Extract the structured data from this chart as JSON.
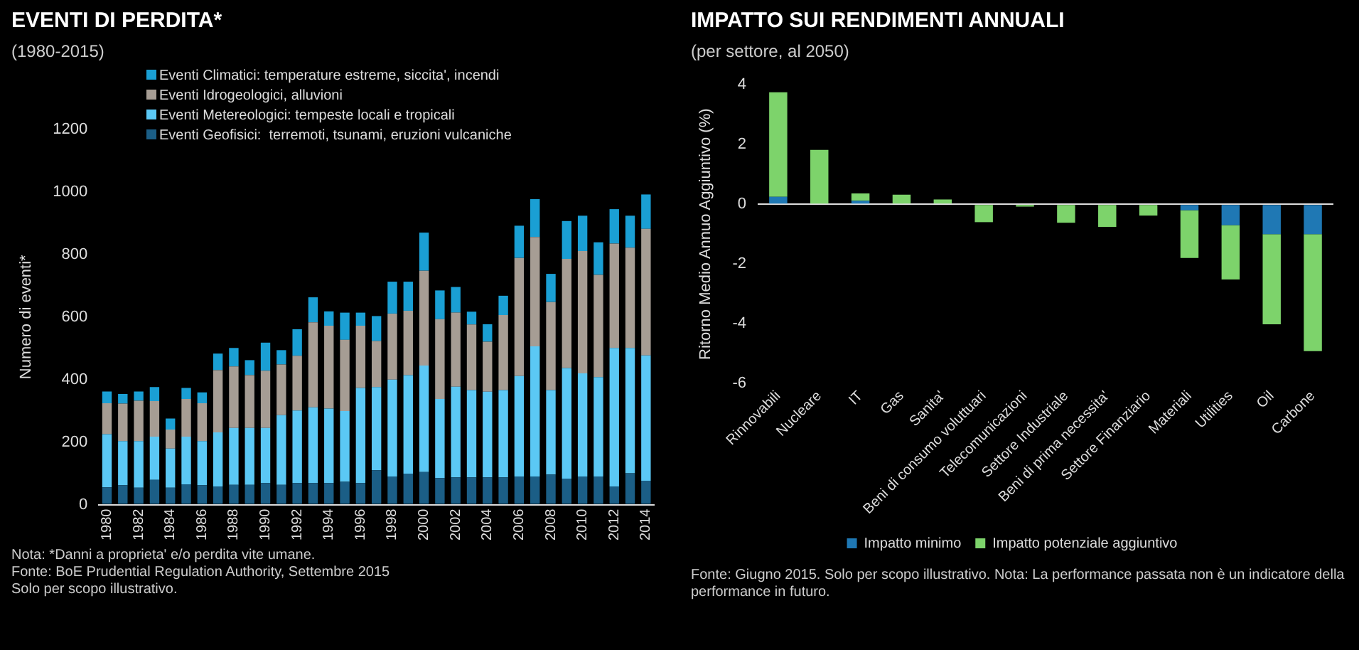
{
  "chart_data": [
    {
      "type": "bar",
      "title": "EVENTI DI PERDITA*",
      "subtitle": "(1980-2015)",
      "ylabel": "Numero di eventi*",
      "stacked": true,
      "legend": "top left",
      "categories": [
        "1980",
        null,
        "1982",
        null,
        "1984",
        null,
        "1986",
        null,
        "1988",
        null,
        "1990",
        null,
        "1992",
        null,
        "1994",
        null,
        "1996",
        null,
        "1998",
        null,
        "2000",
        null,
        "2002",
        null,
        "2004",
        null,
        "2006",
        null,
        "2008",
        null,
        "2010",
        null,
        "2012",
        null,
        "2014"
      ],
      "series": [
        {
          "name": "Eventi Geofisici:  terremoti, tsunami, eruzioni vulcaniche",
          "color": "#1b5e86",
          "values": [
            55,
            62,
            54,
            79,
            54,
            65,
            62,
            58,
            63,
            63,
            69,
            63,
            69,
            69,
            69,
            73,
            69,
            110,
            90,
            99,
            104,
            85,
            87,
            87,
            87,
            87,
            90,
            90,
            96,
            83,
            90,
            90,
            58,
            100,
            76
          ]
        },
        {
          "name": "Eventi Metereologici: tempeste locali e tropicali",
          "color": "#5bc8f5",
          "values": [
            170,
            141,
            149,
            138,
            125,
            152,
            141,
            173,
            182,
            182,
            176,
            223,
            232,
            242,
            238,
            226,
            304,
            266,
            310,
            315,
            341,
            253,
            290,
            279,
            274,
            279,
            321,
            416,
            270,
            354,
            330,
            318,
            443,
            401,
            401
          ]
        },
        {
          "name": "Eventi Idrogeologici, alluvioni",
          "color": "#a69d94",
          "values": [
            99,
            120,
            129,
            114,
            61,
            121,
            121,
            199,
            197,
            169,
            183,
            162,
            175,
            272,
            265,
            228,
            199,
            147,
            211,
            206,
            303,
            255,
            237,
            210,
            160,
            240,
            378,
            350,
            282,
            349,
            391,
            327,
            334,
            321,
            405
          ]
        },
        {
          "name": "Eventi Climatici: temperature estreme, siccita', incendi",
          "color": "#1a9fd4",
          "values": [
            38,
            31,
            30,
            45,
            35,
            35,
            35,
            53,
            59,
            48,
            90,
            46,
            85,
            80,
            46,
            87,
            42,
            80,
            102,
            93,
            122,
            92,
            82,
            41,
            56,
            62,
            103,
            121,
            90,
            121,
            113,
            104,
            110,
            102,
            110
          ]
        }
      ],
      "ylim": [
        0,
        1200
      ],
      "yticks": [
        0,
        200,
        400,
        600,
        800,
        1000,
        1200
      ],
      "annotations": [
        "Nota: *Danni a proprieta' e/o perdita vite umane.",
        "Fonte: BoE Prudential Regulation Authority, Settembre 2015",
        "Solo per scopo illustrativo."
      ]
    },
    {
      "type": "bar",
      "title": "IMPATTO SUI RENDIMENTI ANNUALI",
      "subtitle": "(per settore, al 2050)",
      "ylabel": "Ritorno Medio Annuo Aggiuntivo (%)",
      "stacked": true,
      "legend": "bottom",
      "categories": [
        "Rinnovabili",
        "Nucleare",
        "IT",
        "Gas",
        "Sanita'",
        "Beni di consumo voluttuari",
        "Telecomunicazioni",
        "Settore Industriale",
        "Beni di prima necessita'",
        "Settore Finanziario",
        "Materiali",
        "Utilities",
        "Oil",
        "Carbone"
      ],
      "series": [
        {
          "name": "Impatto minimo",
          "color": "#1f78b4",
          "values": [
            0.25,
            null,
            0.12,
            null,
            null,
            null,
            null,
            null,
            null,
            null,
            -0.2,
            -0.7,
            -1.0,
            -1.0
          ]
        },
        {
          "name": "Impatto potenziale aggiuntivo",
          "color": "#7dd36b",
          "values": [
            3.5,
            1.82,
            0.24,
            0.32,
            0.16,
            -0.6,
            -0.08,
            -0.62,
            -0.76,
            -0.38,
            -1.6,
            -1.82,
            -3.02,
            -3.92
          ]
        }
      ],
      "ylim": [
        -6,
        4
      ],
      "yticks": [
        -6,
        -4,
        -2,
        0,
        2,
        4
      ],
      "annotations": [
        "Fonte: Giugno 2015. Solo per scopo illustrativo. Nota: La performance passata non è un indicatore della performance in futuro."
      ]
    }
  ]
}
